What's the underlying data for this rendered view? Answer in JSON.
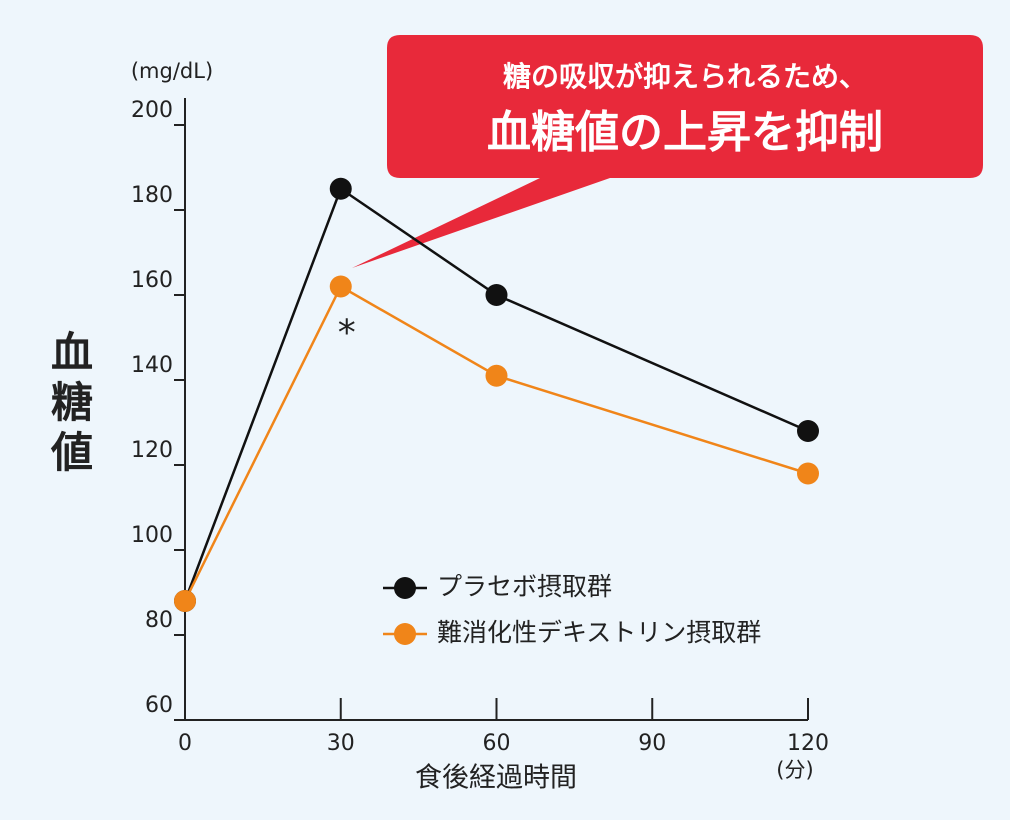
{
  "chart_data": {
    "type": "line",
    "y_unit": "(mg/dL)",
    "x_unit": "(分)",
    "xlabel": "食後経過時間",
    "ylabel": "血糖値",
    "x": [
      0,
      30,
      60,
      120
    ],
    "series": [
      {
        "name": "プラセボ摂取群",
        "color": "#111111",
        "values": [
          88,
          185,
          160,
          128
        ]
      },
      {
        "name": "難消化性デキストリン摂取群",
        "color": "#f08519",
        "values": [
          88,
          162,
          141,
          118
        ]
      }
    ],
    "xlim": [
      0,
      120
    ],
    "xticks": [
      0,
      30,
      60,
      90,
      120
    ],
    "ylim": [
      60,
      200
    ],
    "yticks": [
      60,
      80,
      100,
      120,
      140,
      160,
      180,
      200
    ],
    "callout": {
      "line1": "糖の吸収が抑えられるため、",
      "line2": "血糖値の上昇を抑制"
    },
    "significance": "*"
  }
}
